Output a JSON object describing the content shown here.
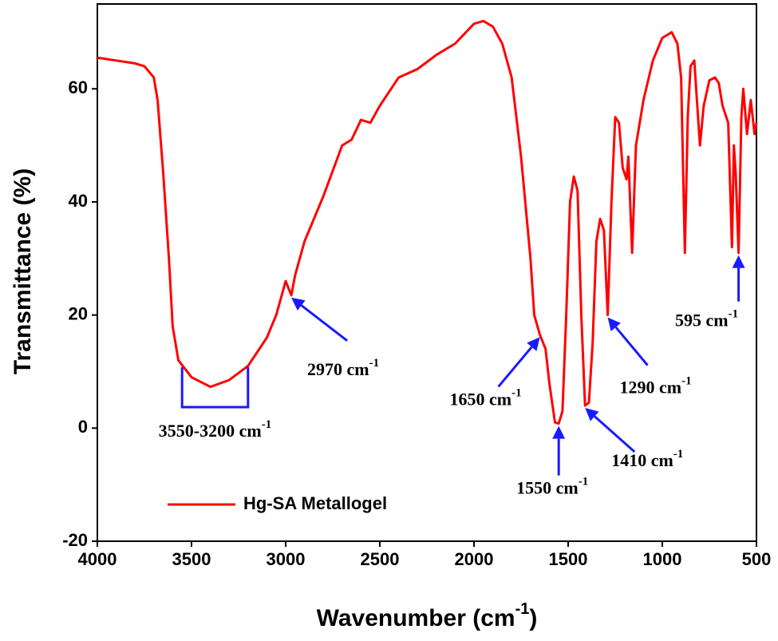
{
  "chart_data": {
    "type": "line",
    "x_label": {
      "text": "Wavenumber (cm",
      "sup": "-1",
      "end": ")"
    },
    "y_label": "Transmittance (%)",
    "xlim": [
      4000,
      500
    ],
    "ylim": [
      -20,
      75
    ],
    "xticks": [
      4000,
      3500,
      3000,
      2500,
      2000,
      1500,
      1000,
      500
    ],
    "yticks": [
      -20,
      0,
      20,
      40,
      60
    ],
    "series": [
      {
        "name": "Hg-SA Metallogel",
        "color": "#ff0000",
        "x": [
          4000,
          3900,
          3800,
          3750,
          3700,
          3680,
          3650,
          3620,
          3600,
          3570,
          3500,
          3400,
          3300,
          3200,
          3100,
          3050,
          3000,
          2970,
          2950,
          2900,
          2800,
          2700,
          2650,
          2600,
          2550,
          2500,
          2400,
          2300,
          2200,
          2100,
          2000,
          1950,
          1900,
          1850,
          1800,
          1750,
          1700,
          1680,
          1650,
          1620,
          1600,
          1570,
          1550,
          1530,
          1510,
          1490,
          1470,
          1450,
          1430,
          1410,
          1390,
          1370,
          1350,
          1330,
          1310,
          1290,
          1270,
          1250,
          1230,
          1210,
          1190,
          1180,
          1160,
          1140,
          1100,
          1050,
          1000,
          950,
          920,
          900,
          880,
          865,
          850,
          830,
          810,
          800,
          780,
          750,
          720,
          700,
          680,
          650,
          630,
          620,
          610,
          595,
          580,
          570,
          550,
          530,
          510,
          500
        ],
        "values": [
          65.5,
          65,
          64.5,
          64,
          62,
          58,
          45,
          30,
          18,
          12,
          9,
          7.3,
          8.5,
          11,
          16,
          20,
          26,
          23.5,
          27,
          33,
          41,
          50,
          51,
          54.5,
          54,
          57,
          62,
          63.5,
          66,
          68,
          71.5,
          72,
          71,
          68,
          62,
          48,
          30,
          20,
          16.5,
          14,
          8,
          1,
          0.8,
          3,
          20,
          40,
          44.5,
          42,
          20,
          4,
          4.5,
          15,
          33,
          37,
          35,
          20,
          40,
          55,
          54,
          46,
          44,
          48,
          31,
          50,
          58,
          65,
          69,
          70,
          68,
          62,
          31,
          55,
          64,
          65,
          55,
          50,
          57,
          61.5,
          62,
          61,
          57,
          54,
          32,
          50,
          45,
          31,
          55,
          60,
          52,
          58,
          52,
          54
        ]
      }
    ],
    "range_annotation": {
      "text": "3550-3200 cm",
      "sup": "-1",
      "x1": 3550,
      "x2": 3200
    },
    "annotations": [
      {
        "text": "2970 cm",
        "sup": "-1",
        "x": 2970,
        "y": 23.5
      },
      {
        "text": "1650 cm",
        "sup": "-1",
        "x": 1650,
        "y": 16.5
      },
      {
        "text": "1550 cm",
        "sup": "-1",
        "x": 1550,
        "y": 0.8
      },
      {
        "text": "1410 cm",
        "sup": "-1",
        "x": 1410,
        "y": 4
      },
      {
        "text": "1290 cm",
        "sup": "-1",
        "x": 1290,
        "y": 20
      },
      {
        "text": "595 cm",
        "sup": "-1",
        "x": 595,
        "y": 31
      }
    ],
    "annotation_color": "#1a1aff",
    "legend": "lower left"
  }
}
